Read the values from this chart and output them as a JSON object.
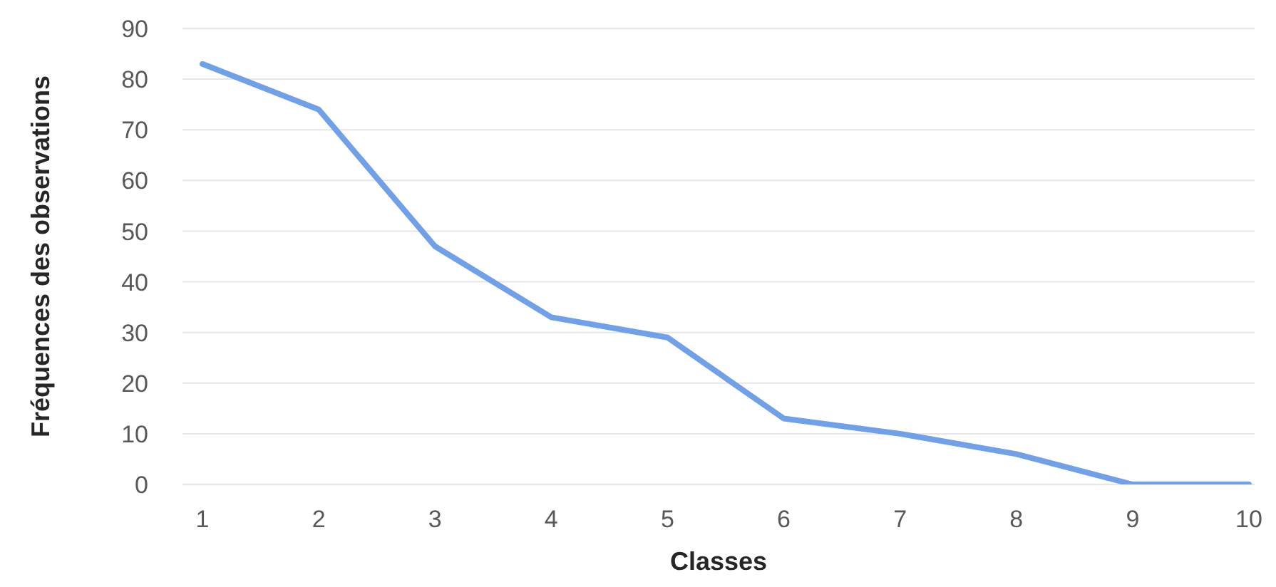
{
  "chart_data": {
    "type": "line",
    "xlabel": "Classes",
    "ylabel": "Fréquences des observations",
    "categories": [
      "1",
      "2",
      "3",
      "4",
      "5",
      "6",
      "7",
      "8",
      "9",
      "10"
    ],
    "series": [
      {
        "color": "#6fa0e8",
        "values": [
          83,
          74,
          47,
          33,
          29,
          13,
          10,
          6,
          0,
          0
        ]
      }
    ],
    "ylim": [
      0,
      90
    ],
    "yticks": [
      0,
      10,
      20,
      30,
      40,
      50,
      60,
      70,
      80,
      90
    ],
    "grid": "y",
    "marker": "none",
    "line_style": "solid",
    "legend": false
  }
}
